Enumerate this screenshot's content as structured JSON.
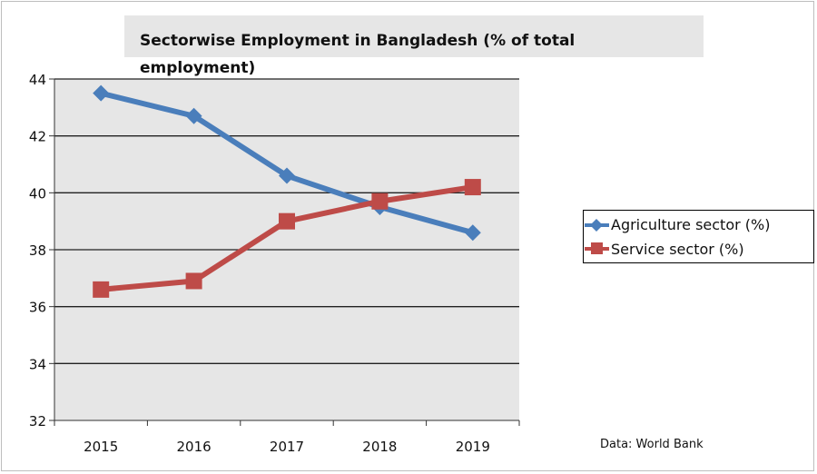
{
  "chart_data": {
    "type": "line",
    "title": "Sectorwise Employment in Bangladesh (% of total employment)",
    "categories": [
      "2015",
      "2016",
      "2017",
      "2018",
      "2019"
    ],
    "ylim": [
      32,
      44
    ],
    "yticks": [
      "32",
      "34",
      "36",
      "38",
      "40",
      "42",
      "44"
    ],
    "grid": true,
    "legend_position": "right",
    "source": "Data: World Bank",
    "series": [
      {
        "name": "Agriculture sector (%)",
        "color": "#4a7ebb",
        "marker": "diamond",
        "values": [
          43.5,
          42.7,
          40.6,
          39.5,
          38.6
        ]
      },
      {
        "name": "Service sector (%)",
        "color": "#be4b48",
        "marker": "square",
        "values": [
          36.6,
          36.9,
          39.0,
          39.7,
          40.2
        ]
      }
    ]
  }
}
